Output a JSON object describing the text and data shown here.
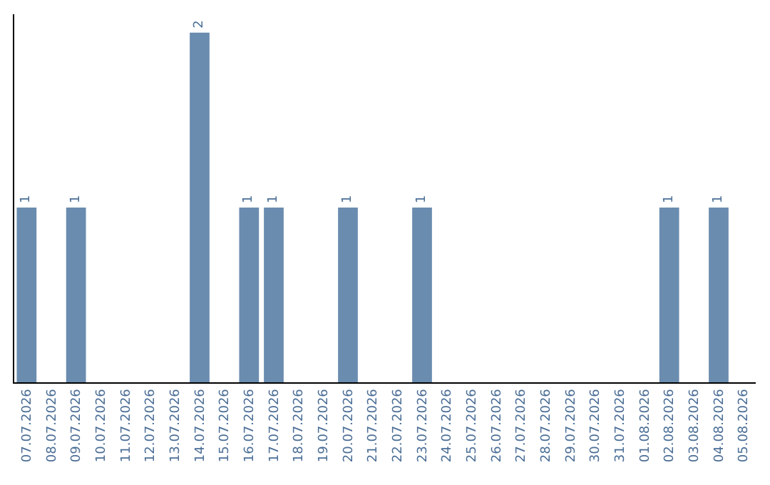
{
  "chart_data": {
    "type": "bar",
    "categories": [
      "07.07.2026",
      "08.07.2026",
      "09.07.2026",
      "10.07.2026",
      "11.07.2026",
      "12.07.2026",
      "13.07.2026",
      "14.07.2026",
      "15.07.2026",
      "16.07.2026",
      "17.07.2026",
      "18.07.2026",
      "19.07.2026",
      "20.07.2026",
      "21.07.2026",
      "22.07.2026",
      "23.07.2026",
      "24.07.2026",
      "25.07.2026",
      "26.07.2026",
      "27.07.2026",
      "28.07.2026",
      "29.07.2026",
      "30.07.2026",
      "31.07.2026",
      "01.08.2026",
      "02.08.2026",
      "03.08.2026",
      "04.08.2026",
      "05.08.2026"
    ],
    "values": [
      1,
      0,
      1,
      0,
      0,
      0,
      0,
      2,
      0,
      1,
      1,
      0,
      0,
      1,
      0,
      0,
      1,
      0,
      0,
      0,
      0,
      0,
      0,
      0,
      0,
      0,
      1,
      0,
      1,
      0
    ],
    "value_labels": [
      "1",
      null,
      "1",
      null,
      null,
      null,
      null,
      "2",
      null,
      "1",
      "1",
      null,
      null,
      "1",
      null,
      null,
      "1",
      null,
      null,
      null,
      null,
      null,
      null,
      null,
      null,
      null,
      "1",
      null,
      "1",
      null
    ],
    "color": "#6a8caf",
    "tick_labels": "x",
    "legend": false
  }
}
